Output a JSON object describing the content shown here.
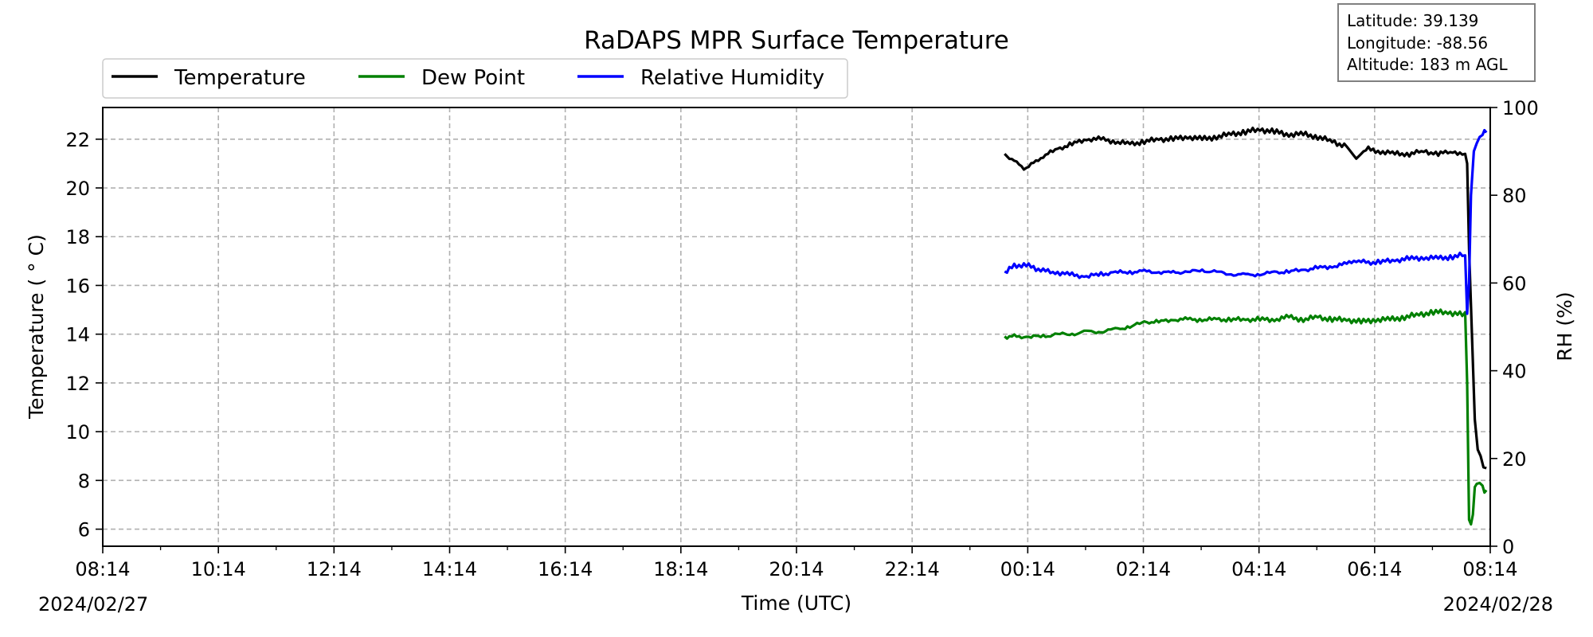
{
  "chart_data": {
    "type": "line",
    "title": "RaDAPS MPR Surface Temperature",
    "xlabel": "Time (UTC)",
    "ylabel_left": "Temperature ($^\\circ$C)",
    "ylabel_left_display": "Temperature ( ° C)",
    "ylabel_right": "RH (%)",
    "x_tick_labels": [
      "08:14",
      "10:14",
      "12:14",
      "14:14",
      "16:14",
      "18:14",
      "20:14",
      "22:14",
      "00:14",
      "02:14",
      "04:14",
      "06:14",
      "08:14"
    ],
    "date_labels": {
      "start": "2024/02/27",
      "end": "2024/02/28"
    },
    "xlim": [
      "2024-02-27 08:14",
      "2024-02-28 08:14"
    ],
    "ylim_left": [
      5.3,
      23.3
    ],
    "y_ticks_left": [
      6,
      8,
      10,
      12,
      14,
      16,
      18,
      20,
      22
    ],
    "ylim_right": [
      0,
      100
    ],
    "y_ticks_right": [
      0,
      20,
      40,
      60,
      80,
      100
    ],
    "grid": true,
    "legend_position": "top-left",
    "info_box": {
      "latitude": "Latitude: 39.139",
      "longitude": "Longitude: -88.56",
      "altitude": "Altitude: 183 m AGL"
    },
    "series": [
      {
        "name": "Temperature",
        "axis": "left",
        "color": "#000000",
        "x": [
          "2024-02-27 23:50",
          "2024-02-28 00:00",
          "2024-02-28 00:10",
          "2024-02-28 00:20",
          "2024-02-28 00:30",
          "2024-02-28 00:45",
          "2024-02-28 01:00",
          "2024-02-28 01:15",
          "2024-02-28 01:30",
          "2024-02-28 01:45",
          "2024-02-28 02:00",
          "2024-02-28 02:15",
          "2024-02-28 02:30",
          "2024-02-28 02:45",
          "2024-02-28 03:00",
          "2024-02-28 03:15",
          "2024-02-28 03:30",
          "2024-02-28 03:45",
          "2024-02-28 04:00",
          "2024-02-28 04:15",
          "2024-02-28 04:30",
          "2024-02-28 04:45",
          "2024-02-28 05:00",
          "2024-02-28 05:15",
          "2024-02-28 05:30",
          "2024-02-28 05:45",
          "2024-02-28 05:55",
          "2024-02-28 06:05",
          "2024-02-28 06:20",
          "2024-02-28 06:35",
          "2024-02-28 06:50",
          "2024-02-28 07:05",
          "2024-02-28 07:20",
          "2024-02-28 07:35",
          "2024-02-28 07:45",
          "2024-02-28 07:48",
          "2024-02-28 07:50",
          "2024-02-28 07:52",
          "2024-02-28 07:55",
          "2024-02-28 07:58",
          "2024-02-28 08:01",
          "2024-02-28 08:04",
          "2024-02-28 08:07",
          "2024-02-28 08:10"
        ],
        "values": [
          21.4,
          21.1,
          20.8,
          21.0,
          21.3,
          21.6,
          21.8,
          22.0,
          22.0,
          21.9,
          21.8,
          21.9,
          22.0,
          22.0,
          22.1,
          22.0,
          22.1,
          22.2,
          22.3,
          22.4,
          22.3,
          22.2,
          22.2,
          22.1,
          21.9,
          21.7,
          21.2,
          21.6,
          21.5,
          21.4,
          21.4,
          21.5,
          21.4,
          21.5,
          21.4,
          21.4,
          21.0,
          17.5,
          14.0,
          10.5,
          9.3,
          9.0,
          8.6,
          8.5
        ]
      },
      {
        "name": "Dew Point",
        "axis": "left",
        "color": "#008000",
        "x": [
          "2024-02-27 23:50",
          "2024-02-28 00:00",
          "2024-02-28 00:15",
          "2024-02-28 00:30",
          "2024-02-28 00:45",
          "2024-02-28 01:00",
          "2024-02-28 01:15",
          "2024-02-28 01:30",
          "2024-02-28 01:45",
          "2024-02-28 02:00",
          "2024-02-28 02:15",
          "2024-02-28 02:30",
          "2024-02-28 02:45",
          "2024-02-28 03:00",
          "2024-02-28 03:15",
          "2024-02-28 03:30",
          "2024-02-28 03:45",
          "2024-02-28 04:00",
          "2024-02-28 04:15",
          "2024-02-28 04:30",
          "2024-02-28 04:45",
          "2024-02-28 05:00",
          "2024-02-28 05:15",
          "2024-02-28 05:30",
          "2024-02-28 05:45",
          "2024-02-28 06:00",
          "2024-02-28 06:15",
          "2024-02-28 06:30",
          "2024-02-28 06:45",
          "2024-02-28 07:00",
          "2024-02-28 07:15",
          "2024-02-28 07:30",
          "2024-02-28 07:45",
          "2024-02-28 07:48",
          "2024-02-28 07:50",
          "2024-02-28 07:52",
          "2024-02-28 07:54",
          "2024-02-28 07:56",
          "2024-02-28 07:58",
          "2024-02-28 08:00",
          "2024-02-28 08:03",
          "2024-02-28 08:06",
          "2024-02-28 08:08",
          "2024-02-28 08:10"
        ],
        "values": [
          13.9,
          13.9,
          13.9,
          13.9,
          14.0,
          14.0,
          14.1,
          14.1,
          14.2,
          14.3,
          14.5,
          14.5,
          14.6,
          14.6,
          14.6,
          14.6,
          14.6,
          14.6,
          14.6,
          14.6,
          14.7,
          14.6,
          14.7,
          14.6,
          14.6,
          14.5,
          14.6,
          14.6,
          14.7,
          14.8,
          14.9,
          14.9,
          14.8,
          14.9,
          12.0,
          6.5,
          6.2,
          6.6,
          7.8,
          7.9,
          8.0,
          7.8,
          7.6,
          7.6
        ]
      },
      {
        "name": "Relative Humidity",
        "axis": "right",
        "color": "#0000ff",
        "x": [
          "2024-02-27 23:50",
          "2024-02-28 00:00",
          "2024-02-28 00:10",
          "2024-02-28 00:20",
          "2024-02-28 00:30",
          "2024-02-28 00:45",
          "2024-02-28 01:00",
          "2024-02-28 01:15",
          "2024-02-28 01:30",
          "2024-02-28 01:45",
          "2024-02-28 02:00",
          "2024-02-28 02:15",
          "2024-02-28 02:30",
          "2024-02-28 02:45",
          "2024-02-28 03:00",
          "2024-02-28 03:15",
          "2024-02-28 03:30",
          "2024-02-28 03:45",
          "2024-02-28 04:00",
          "2024-02-28 04:15",
          "2024-02-28 04:30",
          "2024-02-28 04:45",
          "2024-02-28 05:00",
          "2024-02-28 05:15",
          "2024-02-28 05:30",
          "2024-02-28 05:45",
          "2024-02-28 05:55",
          "2024-02-28 06:05",
          "2024-02-28 06:20",
          "2024-02-28 06:35",
          "2024-02-28 06:50",
          "2024-02-28 07:05",
          "2024-02-28 07:20",
          "2024-02-28 07:35",
          "2024-02-28 07:45",
          "2024-02-28 07:48",
          "2024-02-28 07:50",
          "2024-02-28 07:52",
          "2024-02-28 07:54",
          "2024-02-28 07:57",
          "2024-02-28 08:00",
          "2024-02-28 08:03",
          "2024-02-28 08:06",
          "2024-02-28 08:10"
        ],
        "values": [
          62.5,
          63.8,
          64.2,
          63.5,
          62.8,
          62.4,
          61.8,
          61.5,
          62.0,
          62.4,
          62.5,
          62.6,
          62.5,
          62.3,
          62.6,
          62.8,
          62.5,
          62.0,
          61.8,
          62.0,
          62.4,
          62.6,
          63.0,
          63.4,
          63.8,
          64.3,
          65.2,
          64.6,
          64.8,
          65.2,
          65.5,
          65.8,
          65.6,
          66.0,
          66.3,
          66.3,
          53.0,
          60.0,
          80.0,
          90.0,
          92.5,
          93.5,
          94.2,
          94.3
        ]
      }
    ]
  }
}
